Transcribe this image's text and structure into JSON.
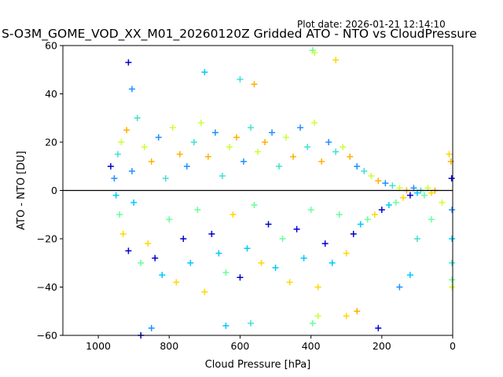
{
  "header": {
    "plot_date": "Plot date: 2026-01-21 12:14:10",
    "title": "S-O3M_GOME_VOD_XX_M01_20260120Z Gridded ATO - NTO vs CloudPressure"
  },
  "chart_data": {
    "type": "scatter",
    "marker": "+",
    "xlabel": "Cloud Pressure [hPa]",
    "ylabel": "ATO - NTO [DU]",
    "xlim": [
      1100,
      0
    ],
    "ylim": [
      -60,
      60
    ],
    "xticks": [
      1000,
      800,
      600,
      400,
      200,
      0
    ],
    "xtick_labels": [
      "1000",
      "800",
      "600",
      "400",
      "200",
      "0"
    ],
    "yticks": [
      -60,
      -40,
      -20,
      0,
      20,
      40,
      60
    ],
    "ytick_labels": [
      "−60",
      "−40",
      "−20",
      "0",
      "20",
      "40",
      "60"
    ],
    "reference_line_y": 0,
    "grid": false,
    "colors": [
      "#0000cd",
      "#1e90ff",
      "#00c8ff",
      "#40e0d0",
      "#66ff99",
      "#ccff33",
      "#ffd700",
      "#ffb000"
    ],
    "points": [
      [
        965,
        10
      ],
      [
        955,
        5
      ],
      [
        950,
        -2
      ],
      [
        945,
        15
      ],
      [
        940,
        -10
      ],
      [
        935,
        20
      ],
      [
        930,
        -18
      ],
      [
        920,
        25
      ],
      [
        915,
        -25
      ],
      [
        905,
        8
      ],
      [
        900,
        -5
      ],
      [
        890,
        30
      ],
      [
        880,
        -30
      ],
      [
        870,
        18
      ],
      [
        860,
        -22
      ],
      [
        850,
        12
      ],
      [
        840,
        -28
      ],
      [
        830,
        22
      ],
      [
        820,
        -35
      ],
      [
        810,
        5
      ],
      [
        800,
        -12
      ],
      [
        790,
        26
      ],
      [
        780,
        -38
      ],
      [
        770,
        15
      ],
      [
        760,
        -20
      ],
      [
        750,
        10
      ],
      [
        740,
        -30
      ],
      [
        730,
        20
      ],
      [
        720,
        -8
      ],
      [
        710,
        28
      ],
      [
        700,
        -42
      ],
      [
        690,
        14
      ],
      [
        680,
        -18
      ],
      [
        670,
        24
      ],
      [
        660,
        -26
      ],
      [
        650,
        6
      ],
      [
        640,
        -34
      ],
      [
        630,
        18
      ],
      [
        620,
        -10
      ],
      [
        610,
        22
      ],
      [
        600,
        -36
      ],
      [
        590,
        12
      ],
      [
        580,
        -24
      ],
      [
        570,
        26
      ],
      [
        560,
        -6
      ],
      [
        550,
        16
      ],
      [
        540,
        -30
      ],
      [
        530,
        20
      ],
      [
        520,
        -14
      ],
      [
        510,
        24
      ],
      [
        500,
        -32
      ],
      [
        490,
        10
      ],
      [
        480,
        -20
      ],
      [
        470,
        22
      ],
      [
        460,
        -38
      ],
      [
        450,
        14
      ],
      [
        440,
        -16
      ],
      [
        430,
        26
      ],
      [
        420,
        -28
      ],
      [
        410,
        18
      ],
      [
        400,
        -8
      ],
      [
        390,
        28
      ],
      [
        380,
        -40
      ],
      [
        370,
        12
      ],
      [
        360,
        -22
      ],
      [
        350,
        20
      ],
      [
        340,
        -30
      ],
      [
        330,
        16
      ],
      [
        320,
        -10
      ],
      [
        310,
        18
      ],
      [
        300,
        -26
      ],
      [
        290,
        14
      ],
      [
        280,
        -18
      ],
      [
        270,
        10
      ],
      [
        260,
        -14
      ],
      [
        250,
        8
      ],
      [
        240,
        -12
      ],
      [
        230,
        6
      ],
      [
        220,
        -10
      ],
      [
        210,
        4
      ],
      [
        200,
        -8
      ],
      [
        190,
        3
      ],
      [
        180,
        -6
      ],
      [
        170,
        2
      ],
      [
        160,
        -5
      ],
      [
        150,
        1
      ],
      [
        140,
        -3
      ],
      [
        130,
        0
      ],
      [
        120,
        -2
      ],
      [
        110,
        1
      ],
      [
        100,
        -1
      ],
      [
        90,
        0
      ],
      [
        80,
        -2
      ],
      [
        70,
        1
      ],
      [
        60,
        -1
      ],
      [
        50,
        0
      ],
      [
        915,
        53
      ],
      [
        905,
        42
      ],
      [
        700,
        49
      ],
      [
        600,
        46
      ],
      [
        395,
        58
      ],
      [
        390,
        57
      ],
      [
        330,
        54
      ],
      [
        560,
        44
      ],
      [
        880,
        -60
      ],
      [
        850,
        -57
      ],
      [
        640,
        -56
      ],
      [
        570,
        -55
      ],
      [
        395,
        -55
      ],
      [
        380,
        -52
      ],
      [
        300,
        -52
      ],
      [
        270,
        -50
      ],
      [
        210,
        -57
      ],
      [
        150,
        -40
      ],
      [
        120,
        -35
      ],
      [
        100,
        -20
      ],
      [
        60,
        -12
      ],
      [
        30,
        -5
      ],
      [
        10,
        15
      ],
      [
        5,
        12
      ],
      [
        3,
        5
      ],
      [
        2,
        -8
      ],
      [
        2,
        -20
      ],
      [
        2,
        -30
      ],
      [
        2,
        -37
      ],
      [
        2,
        -40
      ]
    ]
  }
}
